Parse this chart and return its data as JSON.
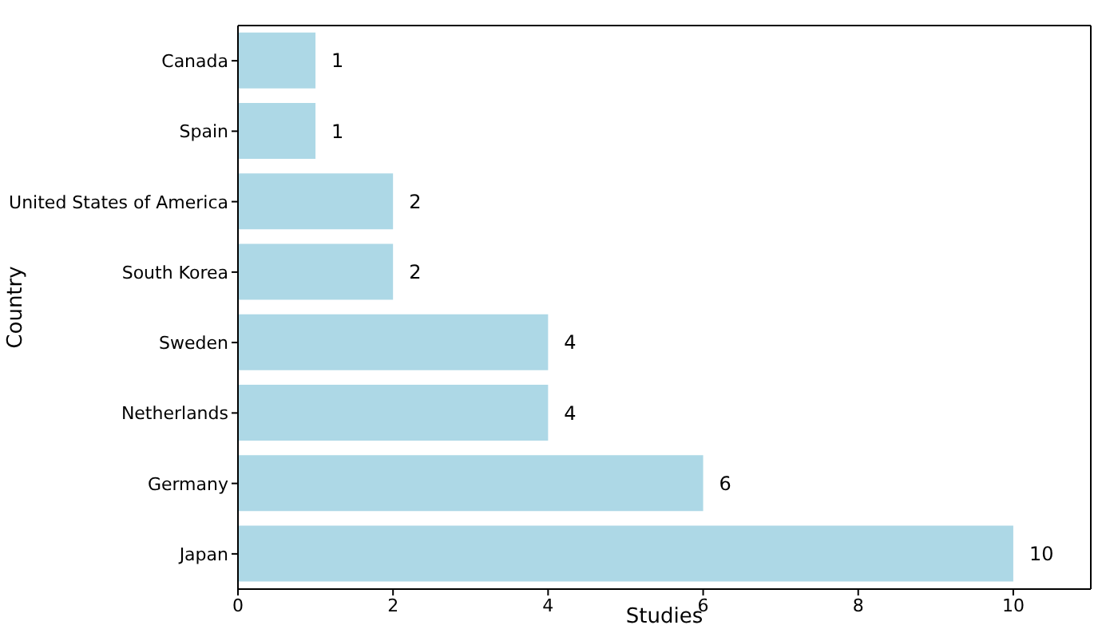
{
  "chart_data": {
    "type": "bar",
    "orientation": "horizontal",
    "xlabel": "Studies",
    "ylabel": "Country",
    "categories": [
      "Canada",
      "Spain",
      "United States of America",
      "South Korea",
      "Sweden",
      "Netherlands",
      "Germany",
      "Japan"
    ],
    "values": [
      1,
      1,
      2,
      2,
      4,
      4,
      6,
      10
    ],
    "color": "#add8e6",
    "xlim": [
      0,
      11
    ],
    "xticks": [
      0,
      2,
      4,
      6,
      8,
      10
    ],
    "data_labels": true,
    "grid": false
  }
}
